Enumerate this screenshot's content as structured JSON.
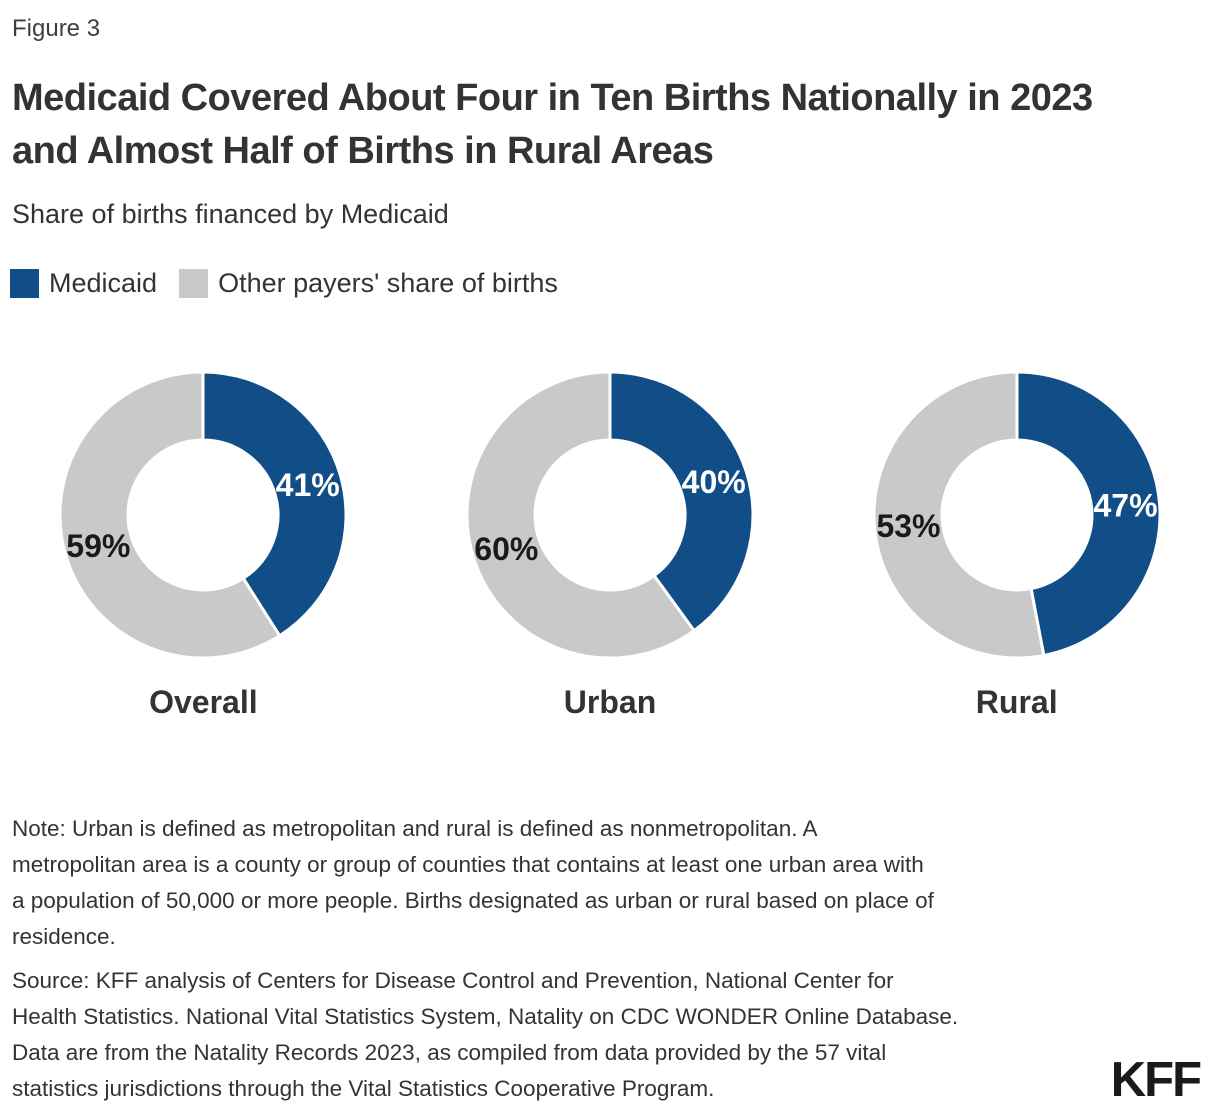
{
  "figure_label": "Figure 3",
  "title_lines": [
    "Medicaid Covered About Four in Ten Births Nationally in 2023",
    "and Almost Half of Births in Rural Areas"
  ],
  "subtitle": "Share of births financed by Medicaid",
  "legend": {
    "items": [
      {
        "label": "Medicaid",
        "color": "#114E87"
      },
      {
        "label": "Other payers' share of births",
        "color": "#C9C9C9"
      }
    ]
  },
  "chart_data": [
    {
      "type": "pie",
      "donut": true,
      "title": "Overall",
      "labels": [
        "Medicaid",
        "Other payers' share of births"
      ],
      "values": [
        41,
        59
      ],
      "value_labels": [
        "41%",
        "59%"
      ],
      "colors": [
        "#114E87",
        "#C9C9C9"
      ],
      "start_angle": "top",
      "direction": "clockwise"
    },
    {
      "type": "pie",
      "donut": true,
      "title": "Urban",
      "labels": [
        "Medicaid",
        "Other payers' share of births"
      ],
      "values": [
        40,
        60
      ],
      "value_labels": [
        "40%",
        "60%"
      ],
      "colors": [
        "#114E87",
        "#C9C9C9"
      ],
      "start_angle": "top",
      "direction": "clockwise"
    },
    {
      "type": "pie",
      "donut": true,
      "title": "Rural",
      "labels": [
        "Medicaid",
        "Other payers' share of births"
      ],
      "values": [
        47,
        53
      ],
      "value_labels": [
        "47%",
        "53%"
      ],
      "colors": [
        "#114E87",
        "#C9C9C9"
      ],
      "start_angle": "top",
      "direction": "clockwise"
    }
  ],
  "value_label_colors": {
    "on_medicaid": "#ffffff",
    "on_other": "#1a1a1a"
  },
  "note_lines": [
    "Note: Urban is defined as metropolitan and rural is defined as nonmetropolitan. A",
    "metropolitan area is a county or group of counties that contains at least one urban area with",
    "a population of 50,000 or more people. Births designated as urban or rural based on place of",
    "residence."
  ],
  "source_lines": [
    "Source: KFF analysis of Centers for Disease Control and Prevention, National Center for",
    "Health Statistics. National Vital Statistics System, Natality on CDC WONDER Online Database.",
    "Data are from the Natality Records 2023, as compiled from data provided by the 57 vital",
    "statistics jurisdictions through the Vital Statistics Cooperative Program."
  ],
  "logo_text": "KFF"
}
